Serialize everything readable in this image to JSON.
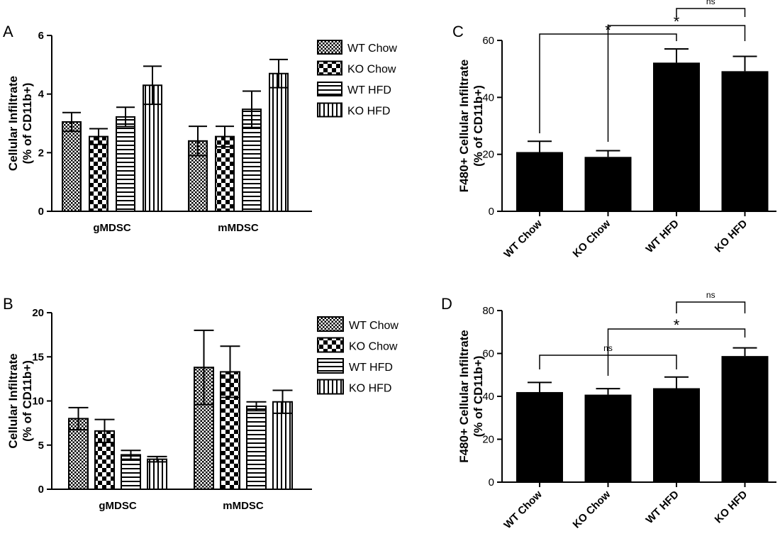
{
  "panels": {
    "A": {
      "label": "A"
    },
    "B": {
      "label": "B"
    },
    "C": {
      "label": "C"
    },
    "D": {
      "label": "D"
    }
  },
  "chart_data": [
    {
      "panel": "A",
      "type": "bar",
      "ylabel": [
        "Cellular Infiltrate",
        "(% of CD11b+)"
      ],
      "xlabel": "",
      "categories": [
        "gMDSC",
        "mMDSC"
      ],
      "ylim": [
        0,
        6
      ],
      "yticks": [
        0,
        2,
        4,
        6
      ],
      "series": [
        {
          "name": "WT Chow",
          "pattern": "fine-check",
          "values": [
            3.05,
            2.4
          ],
          "errors": [
            0.32,
            0.5
          ]
        },
        {
          "name": "KO Chow",
          "pattern": "coarse-check",
          "values": [
            2.55,
            2.55
          ],
          "errors": [
            0.27,
            0.35
          ]
        },
        {
          "name": "WT HFD",
          "pattern": "horizontal-lines",
          "values": [
            3.22,
            3.48
          ],
          "errors": [
            0.33,
            0.62
          ]
        },
        {
          "name": "KO HFD",
          "pattern": "vertical-lines",
          "values": [
            4.3,
            4.7
          ],
          "errors": [
            0.65,
            0.48
          ]
        }
      ]
    },
    {
      "panel": "B",
      "type": "bar",
      "ylabel": [
        "Cellular Infiltrate",
        "(% of CD11b+)"
      ],
      "xlabel": "",
      "categories": [
        "gMDSC",
        "mMDSC"
      ],
      "ylim": [
        0,
        20
      ],
      "yticks": [
        0,
        5,
        10,
        15,
        20
      ],
      "series": [
        {
          "name": "WT Chow",
          "pattern": "fine-check",
          "values": [
            8.0,
            13.8
          ],
          "errors": [
            1.25,
            4.2
          ]
        },
        {
          "name": "KO Chow",
          "pattern": "coarse-check",
          "values": [
            6.6,
            13.3
          ],
          "errors": [
            1.3,
            2.9
          ]
        },
        {
          "name": "WT HFD",
          "pattern": "horizontal-lines",
          "values": [
            3.9,
            9.4
          ],
          "errors": [
            0.5,
            0.5
          ]
        },
        {
          "name": "KO HFD",
          "pattern": "vertical-lines",
          "values": [
            3.4,
            9.9
          ],
          "errors": [
            0.3,
            1.3
          ]
        }
      ]
    },
    {
      "panel": "C",
      "type": "bar",
      "ylabel": [
        "F480+ Cellular Infiltrate",
        "(% of CD11b+)"
      ],
      "xlabel": "",
      "categories": [
        "WT Chow",
        "KO Chow",
        "WT HFD",
        "KO HFD"
      ],
      "ylim": [
        0,
        60
      ],
      "yticks": [
        0,
        20,
        40,
        60
      ],
      "values": [
        20.8,
        19.1,
        52.2,
        49.2
      ],
      "errors": [
        3.8,
        2.2,
        4.8,
        5.2
      ],
      "annotations": [
        {
          "label": "*",
          "from": "WT Chow",
          "to": "WT HFD"
        },
        {
          "label": "*",
          "from": "KO Chow",
          "to": "KO HFD"
        },
        {
          "label": "ns",
          "from": "WT HFD",
          "to": "KO HFD"
        }
      ]
    },
    {
      "panel": "D",
      "type": "bar",
      "ylabel": [
        "F480+ Cellular Infiltrate",
        "(% of CD11b+)"
      ],
      "xlabel": "",
      "categories": [
        "WT Chow",
        "KO Chow",
        "WT HFD",
        "KO HFD"
      ],
      "ylim": [
        0,
        80
      ],
      "yticks": [
        0,
        20,
        40,
        60,
        80
      ],
      "values": [
        42.0,
        40.8,
        43.8,
        58.8
      ],
      "errors": [
        4.5,
        2.8,
        5.2,
        3.8
      ],
      "annotations": [
        {
          "label": "ns",
          "from": "WT Chow",
          "to": "WT HFD"
        },
        {
          "label": "*",
          "from": "KO Chow",
          "to": "KO HFD"
        },
        {
          "label": "ns",
          "from": "WT HFD",
          "to": "KO HFD"
        }
      ]
    }
  ]
}
